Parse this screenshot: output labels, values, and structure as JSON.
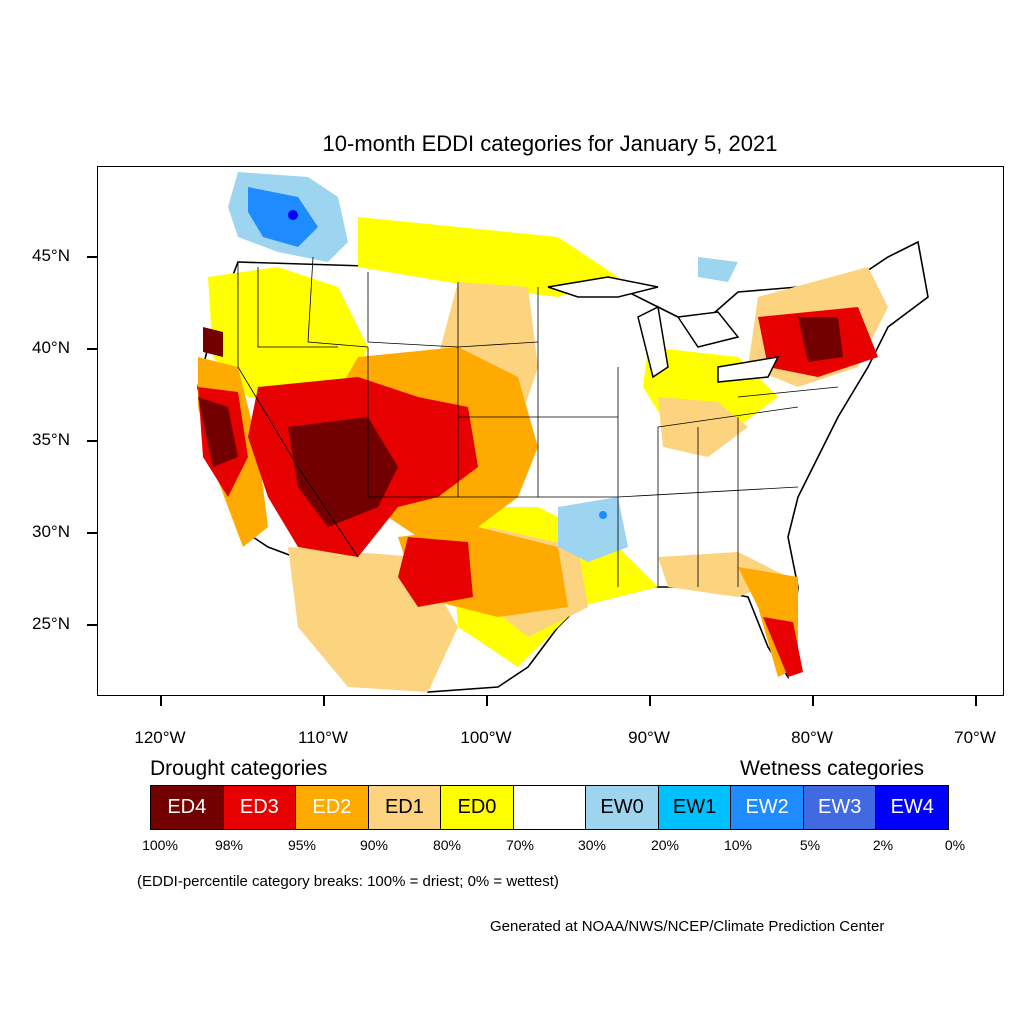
{
  "title": "10-month EDDI categories for January 5, 2021",
  "lat_labels": [
    "45°N",
    "40°N",
    "35°N",
    "30°N",
    "25°N"
  ],
  "lon_labels": [
    "120°W",
    "110°W",
    "100°W",
    "90°W",
    "80°W",
    "70°W"
  ],
  "drought_heading": "Drought categories",
  "wetness_heading": "Wetness categories",
  "categories": [
    {
      "label": "ED4",
      "color": "#730000",
      "text_color": "#ffffff"
    },
    {
      "label": "ED3",
      "color": "#e60000",
      "text_color": "#ffffff"
    },
    {
      "label": "ED2",
      "color": "#ffaa00",
      "text_color": "#ffffff"
    },
    {
      "label": "ED1",
      "color": "#fcd37f",
      "text_color": "#000000"
    },
    {
      "label": "ED0",
      "color": "#ffff00",
      "text_color": "#000000"
    },
    {
      "label": "",
      "color": "#ffffff",
      "text_color": "#000000"
    },
    {
      "label": "EW0",
      "color": "#9dd4ef",
      "text_color": "#000000"
    },
    {
      "label": "EW1",
      "color": "#00c0ff",
      "text_color": "#000000"
    },
    {
      "label": "EW2",
      "color": "#1e8cff",
      "text_color": "#ffffff"
    },
    {
      "label": "EW3",
      "color": "#4169e1",
      "text_color": "#ffffff"
    },
    {
      "label": "EW4",
      "color": "#0000ff",
      "text_color": "#ffffff"
    }
  ],
  "breaks": [
    "100%",
    "98%",
    "95%",
    "90%",
    "80%",
    "70%",
    "30%",
    "20%",
    "10%",
    "5%",
    "2%",
    "0%"
  ],
  "note": "(EDDI-percentile category breaks: 100% = driest; 0% = wettest)",
  "credit": "Generated at NOAA/NWS/NCEP/Climate Prediction Center"
}
